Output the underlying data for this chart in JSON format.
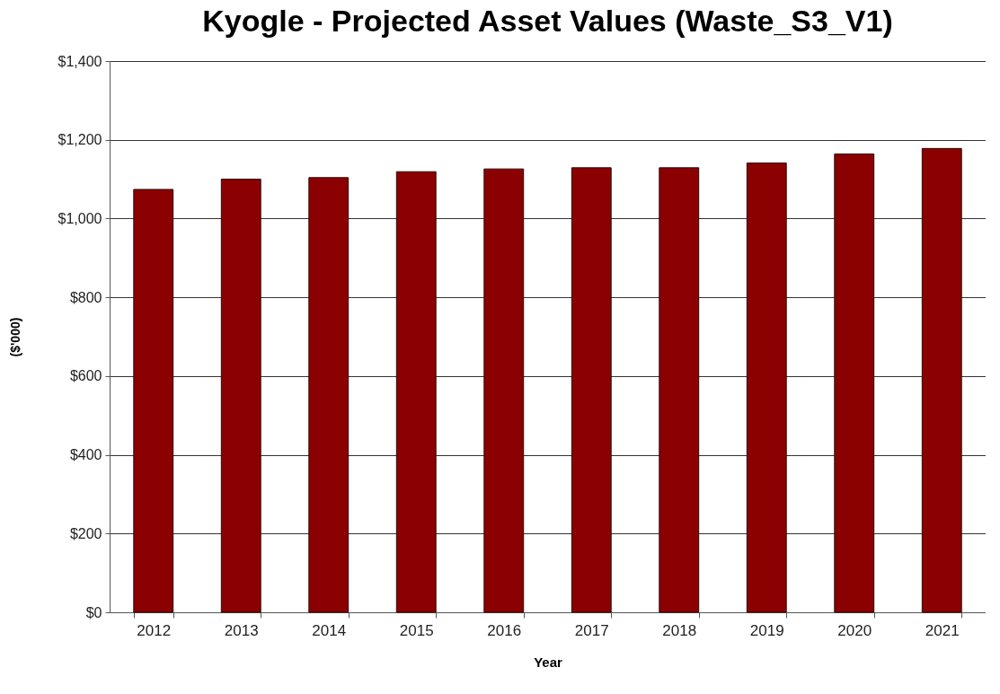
{
  "chart_data": {
    "type": "bar",
    "title": "Kyogle  - Projected Asset Values (Waste_S3_V1)",
    "xlabel": "Year",
    "ylabel": "($'000)",
    "categories": [
      "2012",
      "2013",
      "2014",
      "2015",
      "2016",
      "2017",
      "2018",
      "2019",
      "2020",
      "2021"
    ],
    "values": [
      1074,
      1100,
      1104,
      1119,
      1126,
      1129,
      1129,
      1141,
      1164,
      1178
    ],
    "color": "#8b0000",
    "ylim": [
      0,
      1400
    ],
    "yticks": [
      {
        "value": 0,
        "label": "$0"
      },
      {
        "value": 200,
        "label": "$200"
      },
      {
        "value": 400,
        "label": "$400"
      },
      {
        "value": 600,
        "label": "$600"
      },
      {
        "value": 800,
        "label": "$800"
      },
      {
        "value": 1000,
        "label": "$1,000"
      },
      {
        "value": 1200,
        "label": "$1,200"
      },
      {
        "value": 1400,
        "label": "$1,400"
      }
    ],
    "grid": "y"
  }
}
